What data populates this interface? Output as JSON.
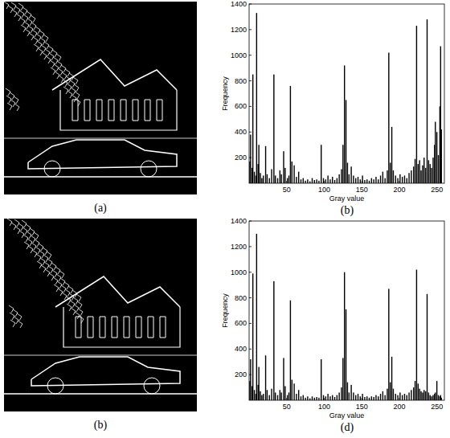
{
  "figure": {
    "captions": [
      "(a)",
      "(b)",
      "(b)",
      "(d)"
    ]
  },
  "chart_data": [
    {
      "type": "bar",
      "x_label": "Gray value",
      "y_label": "Frequency",
      "color": "#000000",
      "xlim": [
        0,
        260
      ],
      "xticks": [
        50,
        100,
        150,
        200,
        250
      ],
      "ylim": [
        0,
        1400
      ],
      "yticks": [
        200,
        400,
        600,
        800,
        1000,
        1200,
        1400
      ],
      "x": [
        1,
        2,
        4,
        5,
        7,
        9,
        10,
        12,
        13,
        15,
        17,
        19,
        22,
        24,
        27,
        30,
        33,
        35,
        38,
        41,
        43,
        46,
        48,
        51,
        53,
        55,
        57,
        60,
        63,
        66,
        69,
        72,
        75,
        78,
        81,
        84,
        87,
        90,
        93,
        96,
        99,
        102,
        105,
        108,
        111,
        114,
        117,
        120,
        123,
        125,
        127,
        129,
        131,
        133,
        136,
        139,
        142,
        145,
        148,
        151,
        154,
        157,
        160,
        163,
        166,
        169,
        172,
        175,
        178,
        181,
        184,
        186,
        188,
        190,
        192,
        195,
        198,
        201,
        204,
        207,
        210,
        213,
        216,
        219,
        221,
        223,
        225,
        227,
        229,
        231,
        233,
        235,
        237,
        239,
        241,
        243,
        245,
        247,
        248,
        250,
        252,
        254,
        255,
        256
      ],
      "values": [
        170,
        380,
        120,
        850,
        90,
        60,
        1330,
        150,
        300,
        80,
        40,
        60,
        290,
        70,
        40,
        110,
        850,
        60,
        40,
        100,
        70,
        250,
        120,
        40,
        60,
        760,
        170,
        140,
        50,
        90,
        30,
        40,
        20,
        30,
        15,
        40,
        25,
        30,
        20,
        300,
        40,
        30,
        60,
        30,
        50,
        25,
        40,
        70,
        110,
        300,
        920,
        650,
        160,
        70,
        130,
        60,
        40,
        50,
        30,
        60,
        25,
        30,
        20,
        40,
        30,
        50,
        30,
        60,
        90,
        40,
        100,
        1020,
        160,
        440,
        100,
        60,
        40,
        70,
        50,
        60,
        40,
        80,
        100,
        130,
        190,
        1230,
        150,
        180,
        100,
        140,
        200,
        120,
        1280,
        180,
        150,
        120,
        200,
        300,
        480,
        400,
        220,
        600,
        1070,
        420
      ]
    },
    {
      "type": "bar",
      "x_label": "Gray value",
      "y_label": "Frequency",
      "color": "#000000",
      "xlim": [
        0,
        260
      ],
      "xticks": [
        50,
        100,
        150,
        200,
        250
      ],
      "ylim": [
        0,
        1400
      ],
      "yticks": [
        200,
        400,
        600,
        800,
        1000,
        1200,
        1400
      ],
      "x": [
        1,
        2,
        4,
        5,
        7,
        9,
        10,
        12,
        13,
        15,
        17,
        19,
        22,
        24,
        27,
        30,
        33,
        35,
        38,
        41,
        43,
        46,
        48,
        51,
        53,
        55,
        57,
        60,
        63,
        66,
        69,
        72,
        75,
        78,
        81,
        84,
        87,
        90,
        93,
        96,
        99,
        102,
        105,
        108,
        111,
        114,
        117,
        120,
        123,
        125,
        127,
        129,
        131,
        133,
        136,
        139,
        142,
        145,
        148,
        151,
        154,
        157,
        160,
        163,
        166,
        169,
        172,
        175,
        178,
        181,
        184,
        186,
        188,
        190,
        192,
        195,
        198,
        201,
        204,
        207,
        210,
        213,
        216,
        219,
        221,
        223,
        225,
        227,
        229,
        231,
        233,
        235,
        237,
        239,
        241,
        243,
        245,
        247,
        248,
        250,
        252,
        254,
        255,
        256
      ],
      "values": [
        150,
        320,
        110,
        990,
        80,
        50,
        1300,
        120,
        260,
        70,
        40,
        50,
        350,
        80,
        40,
        90,
        930,
        60,
        40,
        80,
        60,
        330,
        110,
        40,
        60,
        780,
        160,
        130,
        50,
        80,
        30,
        40,
        20,
        30,
        15,
        30,
        20,
        25,
        20,
        320,
        40,
        30,
        50,
        30,
        40,
        25,
        40,
        60,
        100,
        330,
        1000,
        710,
        140,
        60,
        120,
        60,
        40,
        50,
        30,
        50,
        25,
        30,
        20,
        30,
        25,
        40,
        30,
        50,
        70,
        40,
        90,
        870,
        140,
        340,
        90,
        50,
        40,
        60,
        40,
        50,
        40,
        60,
        80,
        100,
        150,
        1020,
        130,
        90,
        70,
        60,
        80,
        70,
        830,
        60,
        40,
        30,
        40,
        50,
        60,
        150,
        40,
        30,
        40,
        20
      ]
    }
  ]
}
